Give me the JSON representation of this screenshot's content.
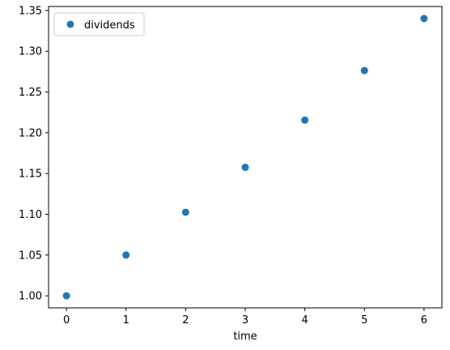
{
  "chart_data": {
    "type": "scatter",
    "title": "",
    "xlabel": "time",
    "ylabel": "",
    "xlim": [
      -0.3,
      6.3
    ],
    "ylim": [
      0.9852,
      1.3549
    ],
    "x_ticks": [
      0,
      1,
      2,
      3,
      4,
      5,
      6
    ],
    "y_ticks": [
      1.0,
      1.05,
      1.1,
      1.15,
      1.2,
      1.25,
      1.3,
      1.35
    ],
    "grid": false,
    "legend_placement": "upper-left",
    "series": [
      {
        "name": "dividends",
        "color": "#1f77b4",
        "marker": "circle",
        "x": [
          0,
          1,
          2,
          3,
          4,
          5,
          6
        ],
        "y": [
          1.0,
          1.05,
          1.1025,
          1.1576,
          1.2155,
          1.2763,
          1.3401
        ]
      }
    ]
  }
}
